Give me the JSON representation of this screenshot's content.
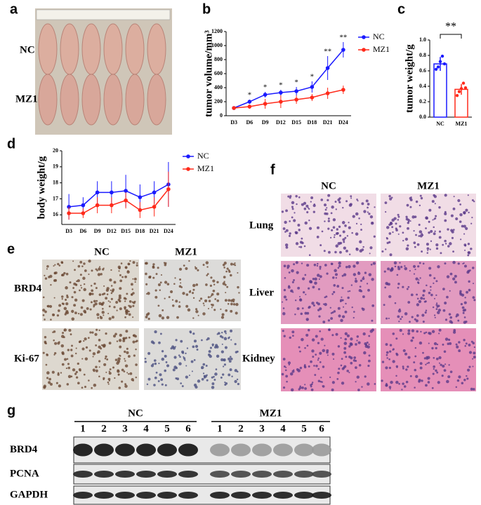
{
  "panel_letters": [
    "a",
    "b",
    "c",
    "d",
    "e",
    "f",
    "g"
  ],
  "photo": {
    "rows": [
      "NC",
      "MZ1"
    ]
  },
  "chart_data": [
    {
      "type": "line",
      "ylabel": "tumor volume/mm³",
      "categories": [
        "D3",
        "D6",
        "D9",
        "D12",
        "D15",
        "D18",
        "D21",
        "D24"
      ],
      "ylim": [
        0,
        1200
      ],
      "yticks": [
        0,
        200,
        400,
        600,
        800,
        1000,
        1200
      ],
      "series": [
        {
          "name": "NC",
          "color": "#1a1aff",
          "values": [
            110,
            200,
            300,
            330,
            350,
            410,
            680,
            940
          ],
          "errors": [
            20,
            30,
            40,
            40,
            60,
            80,
            170,
            110
          ]
        },
        {
          "name": "MZ1",
          "color": "#ff2a1a",
          "values": [
            110,
            130,
            170,
            200,
            230,
            260,
            320,
            370
          ],
          "errors": [
            20,
            30,
            70,
            90,
            60,
            50,
            80,
            60
          ]
        }
      ],
      "significance": [
        null,
        "*",
        "*",
        "*",
        "*",
        "*",
        "**",
        "**"
      ],
      "legend": "right"
    },
    {
      "type": "bar",
      "ylabel": "tumor weight/g",
      "categories": [
        "NC",
        "MZ1"
      ],
      "values": [
        0.69,
        0.36
      ],
      "errors": [
        0.09,
        0.07
      ],
      "colors": [
        "#1a1aff",
        "#ff2a1a"
      ],
      "points": [
        [
          0.62,
          0.65,
          0.72,
          0.79,
          0.69
        ],
        [
          0.28,
          0.33,
          0.37,
          0.44,
          0.38
        ]
      ],
      "ylim": [
        0,
        1
      ],
      "yticks": [
        {
          "value": 0,
          "label": "0.0"
        },
        0.2,
        0.4,
        0.6,
        0.8,
        {
          "value": 1,
          "label": "1.0"
        }
      ],
      "significance": "**"
    },
    {
      "type": "line",
      "ylabel": "body weight/g",
      "categories": [
        "D3",
        "D6",
        "D9",
        "D12",
        "D15",
        "D18",
        "D21",
        "D24"
      ],
      "ylim": [
        15.4,
        20
      ],
      "yticks": [
        16,
        17,
        18,
        19,
        20
      ],
      "series": [
        {
          "name": "NC",
          "color": "#1a1aff",
          "values": [
            16.5,
            16.6,
            17.4,
            17.4,
            17.5,
            17.1,
            17.4,
            17.9
          ],
          "errors": [
            0.8,
            0.5,
            0.7,
            0.7,
            1.0,
            0.8,
            0.7,
            1.4
          ]
        },
        {
          "name": "MZ1",
          "color": "#ff2a1a",
          "values": [
            16.1,
            16.1,
            16.6,
            16.6,
            16.9,
            16.3,
            16.5,
            17.6
          ],
          "errors": [
            0.4,
            0.3,
            0.5,
            0.5,
            0.5,
            0.5,
            0.6,
            1.1
          ]
        }
      ],
      "significance": [],
      "legend": "right"
    }
  ],
  "ihc": {
    "columns": [
      "NC",
      "MZ1"
    ],
    "rows": [
      "BRD4",
      "Ki-67"
    ]
  },
  "histology": {
    "columns": [
      "NC",
      "MZ1"
    ],
    "rows": [
      "Lung",
      "Liver",
      "Kidney"
    ]
  },
  "blot": {
    "groups": [
      {
        "name": "NC",
        "lanes": [
          "1",
          "2",
          "3",
          "4",
          "5",
          "6"
        ]
      },
      {
        "name": "MZ1",
        "lanes": [
          "1",
          "2",
          "3",
          "4",
          "5",
          "6"
        ]
      }
    ],
    "rows": [
      "BRD4",
      "PCNA",
      "GAPDH"
    ]
  }
}
